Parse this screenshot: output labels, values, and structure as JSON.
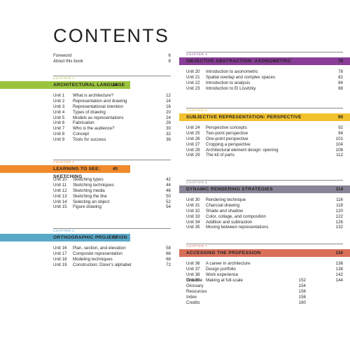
{
  "title": "CONTENTS",
  "front": [
    {
      "name": "Foreword",
      "page": "6"
    },
    {
      "name": "About this book",
      "page": "8"
    }
  ],
  "chapters": [
    {
      "kicker": "CHAPTER 1",
      "title": "ARCHITECTURAL LANGUAGE",
      "page": "10",
      "color": "#9bc43d",
      "units": [
        {
          "unit": "Unit 1",
          "name": "What is architecture?",
          "page": "12"
        },
        {
          "unit": "Unit 2",
          "name": "Representation and drawing",
          "page": "14"
        },
        {
          "unit": "Unit 3",
          "name": "Representational intention",
          "page": "16"
        },
        {
          "unit": "Unit 4",
          "name": "Types of drawing",
          "page": "20"
        },
        {
          "unit": "Unit 5",
          "name": "Models as representations",
          "page": "24"
        },
        {
          "unit": "Unit 6",
          "name": "Fabrication",
          "page": "28"
        },
        {
          "unit": "Unit 7",
          "name": "Who is the audience?",
          "page": "30"
        },
        {
          "unit": "Unit 8",
          "name": "Concept",
          "page": "32"
        },
        {
          "unit": "Unit 9",
          "name": "Tools for success",
          "page": "36"
        }
      ]
    },
    {
      "kicker": "CHAPTER 2",
      "title": "LEARNING TO SEE: SKETCHING",
      "page": "40",
      "color": "#f08a2c",
      "units": [
        {
          "unit": "Unit 10",
          "name": "Sketching types",
          "page": "42"
        },
        {
          "unit": "Unit 11",
          "name": "Sketching techniques",
          "page": "44"
        },
        {
          "unit": "Unit 12",
          "name": "Sketching media",
          "page": "46"
        },
        {
          "unit": "Unit 13",
          "name": "Sketching the line",
          "page": "50"
        },
        {
          "unit": "Unit 14",
          "name": "Selecting an object",
          "page": "52"
        },
        {
          "unit": "Unit 15",
          "name": "Figure drawing",
          "page": "54"
        }
      ]
    },
    {
      "kicker": "CHAPTER 3",
      "title": "ORTHOGRAPHIC PROJECTION",
      "page": "56",
      "color": "#5aa8c8",
      "units": [
        {
          "unit": "Unit 16",
          "name": "Plan, section, and elevation",
          "page": "58"
        },
        {
          "unit": "Unit 17",
          "name": "Composite representation",
          "page": "66"
        },
        {
          "unit": "Unit 18",
          "name": "Modeling techniques",
          "page": "68"
        },
        {
          "unit": "Unit 19",
          "name": "Construction: Dürer’s alphabet",
          "page": "72"
        }
      ]
    },
    {
      "kicker": "CHAPTER 4",
      "title": "OBJECTIVE ABSTRACTION: AXONOMETRIC",
      "page": "76",
      "color": "#8a3d98",
      "units": [
        {
          "unit": "Unit 20",
          "name": "Introduction to axonometric",
          "page": "78"
        },
        {
          "unit": "Unit 21",
          "name": "Spatial overlap and complex spaces",
          "page": "82"
        },
        {
          "unit": "Unit 22",
          "name": "Introduction to analysis",
          "page": "84"
        },
        {
          "unit": "Unit 23",
          "name": "Introduction to El Lissitzky",
          "page": "88"
        }
      ]
    },
    {
      "kicker": "CHAPTER 5",
      "title": "SUBJECTIVE REPRESENTATION: PERSPECTIVE",
      "page": "90",
      "color": "#f2c12e",
      "units": [
        {
          "unit": "Unit 24",
          "name": "Perspective concepts",
          "page": "92"
        },
        {
          "unit": "Unit 25",
          "name": "Two-point perspective",
          "page": "94"
        },
        {
          "unit": "Unit 26",
          "name": "One-point perspective",
          "page": "101"
        },
        {
          "unit": "Unit 27",
          "name": "Cropping a perspective",
          "page": "104"
        },
        {
          "unit": "Unit 28",
          "name": "Architectural element design: opening",
          "page": "108"
        },
        {
          "unit": "Unit 29",
          "name": "The kit of parts",
          "page": "112"
        }
      ]
    },
    {
      "kicker": "CHAPTER 6",
      "title": "DYNAMIC RENDERING STRATEGIES",
      "page": "114",
      "color": "#8a8296",
      "units": [
        {
          "unit": "Unit 30",
          "name": "Rendering technique",
          "page": "116"
        },
        {
          "unit": "Unit 31",
          "name": "Charcoal drawing",
          "page": "118"
        },
        {
          "unit": "Unit 32",
          "name": "Shade and shadow",
          "page": "120"
        },
        {
          "unit": "Unit 33",
          "name": "Color, collage, and composition",
          "page": "122"
        },
        {
          "unit": "Unit 34",
          "name": "Addition and subtraction",
          "page": "126"
        },
        {
          "unit": "Unit 35",
          "name": "Moving between representations",
          "page": "132"
        }
      ]
    },
    {
      "kicker": "CHAPTER 7",
      "title": "ACCESSING THE PROFESSION",
      "page": "134",
      "color": "#d9705a",
      "units": [
        {
          "unit": "Unit 36",
          "name": "A career in architecture",
          "page": "136"
        },
        {
          "unit": "Unit 37",
          "name": "Design portfolio",
          "page": "138"
        },
        {
          "unit": "Unit 38",
          "name": "Work experience",
          "page": "142"
        },
        {
          "unit": "Unit 39",
          "name": "Making at full-scale",
          "page": "144"
        }
      ]
    }
  ],
  "back": [
    {
      "name": "Timeline",
      "page": "152"
    },
    {
      "name": "Glossary",
      "page": "154"
    },
    {
      "name": "Resources",
      "page": "156"
    },
    {
      "name": "Index",
      "page": "158"
    },
    {
      "name": "Credits",
      "page": "160"
    }
  ]
}
